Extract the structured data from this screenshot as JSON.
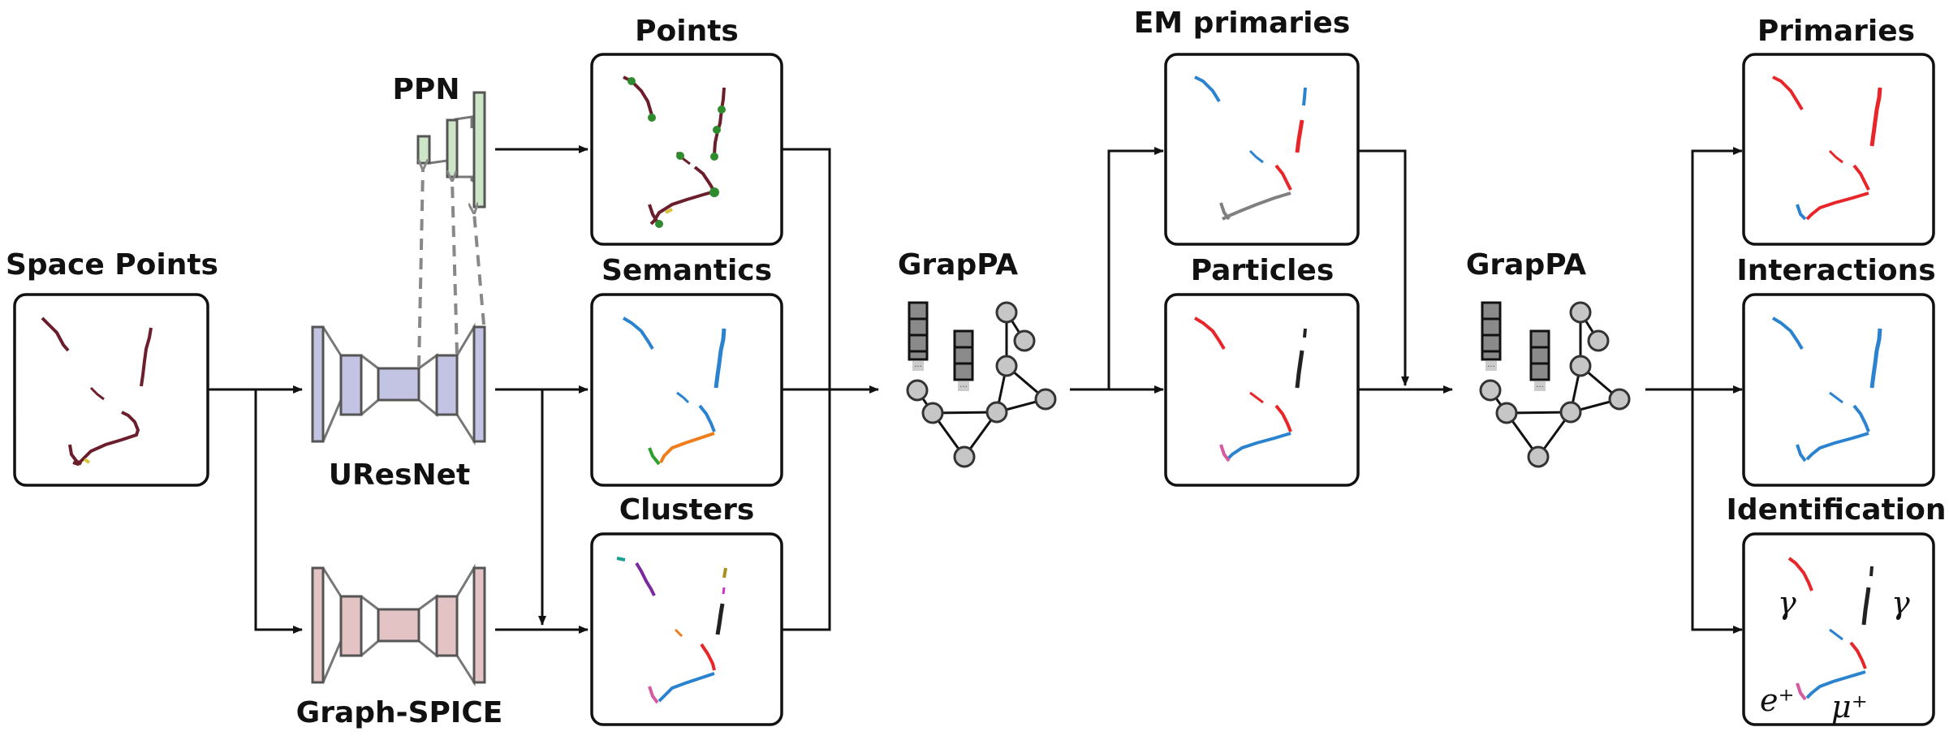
{
  "labels": {
    "space_points": "Space Points",
    "ppn": "PPN",
    "uresnet": "UResNet",
    "graph_spice": "Graph-SPICE",
    "points": "Points",
    "semantics": "Semantics",
    "clusters": "Clusters",
    "grappa_1": "GrapPA",
    "em_primaries": "EM primaries",
    "particles": "Particles",
    "grappa_2": "GrapPA",
    "primaries": "Primaries",
    "interactions": "Interactions",
    "identification": "Identification"
  },
  "identification_tags": {
    "gamma_left": "γ",
    "gamma_right": "γ",
    "positron": "e⁺",
    "muon": "μ⁺"
  },
  "colors": {
    "uresnet_fill": "#c3c3e3",
    "graph_spice_fill": "#e3c3c3",
    "ppn_fill": "#cde6c8",
    "track_dark": "#6b1e2c",
    "ppn_point": "#2e8b2e",
    "blue": "#2b83d0",
    "red": "#e8262a",
    "orange": "#f07d1c",
    "green": "#2aa02a",
    "pink": "#d65aa0",
    "gray": "#808080",
    "black": "#222222",
    "purple": "#7b2a9e",
    "teal": "#1aa08f",
    "olive": "#a8921c",
    "magenta": "#d02fd0"
  }
}
